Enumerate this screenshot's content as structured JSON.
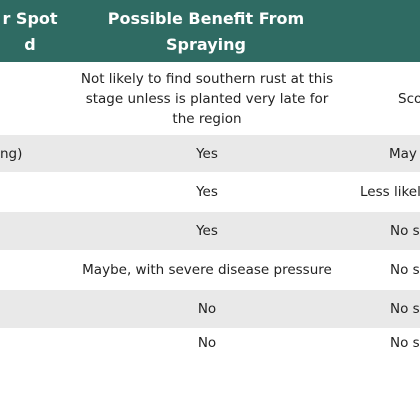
{
  "table": {
    "header": [
      [
        "r Spot",
        "d"
      ],
      [
        "Possible Benefit From",
        "Spraying"
      ],
      null
    ],
    "rows": [
      [
        null,
        "Not likely to find southern rust at this stage unless is planted very late for the region",
        "Sco"
      ],
      [
        "ng)",
        "Yes",
        "May"
      ],
      [
        null,
        "Yes",
        "Less likel"
      ],
      [
        null,
        "Yes",
        "No s"
      ],
      [
        null,
        "Maybe, with severe disease pressure",
        "No s"
      ],
      [
        null,
        "No",
        "No s"
      ],
      [
        null,
        "No",
        "No s"
      ]
    ]
  }
}
